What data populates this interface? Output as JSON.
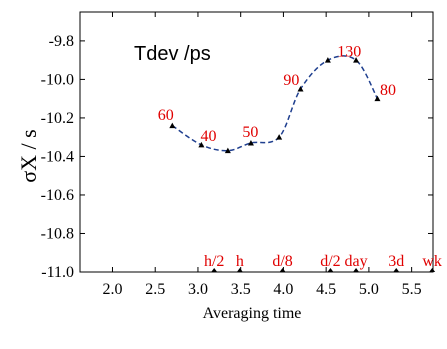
{
  "chart_data": {
    "type": "line",
    "title": "Tdev /ps",
    "xlabel": "Averaging time",
    "ylabel": "σX / s",
    "xlim": [
      1.62,
      5.75
    ],
    "ylim": [
      -11.0,
      -9.65
    ],
    "x_ticks": [
      2.0,
      2.5,
      3.0,
      3.5,
      4.0,
      4.5,
      5.0,
      5.5
    ],
    "x_tick_labels": [
      "2.0",
      "2.5",
      "3.0",
      "3.5",
      "4.0",
      "4.5",
      "5.0",
      "5.5"
    ],
    "y_ticks": [
      -9.8,
      -10.0,
      -10.2,
      -10.4,
      -10.6,
      -10.8,
      -11.0
    ],
    "y_tick_labels": [
      "-9.8",
      "-10.0",
      "-10.2",
      "-10.4",
      "-10.6",
      "-10.8",
      "-11.0"
    ],
    "grid": false,
    "line_color": "#1f3f8f",
    "label_color": "#e00000",
    "series": [
      {
        "points": [
          {
            "x": 2.7,
            "y": -10.24
          },
          {
            "x": 3.04,
            "y": -10.34
          },
          {
            "x": 3.35,
            "y": -10.37
          },
          {
            "x": 3.62,
            "y": -10.33
          },
          {
            "x": 3.95,
            "y": -10.3
          },
          {
            "x": 4.2,
            "y": -10.05
          },
          {
            "x": 4.52,
            "y": -9.9
          },
          {
            "x": 4.85,
            "y": -9.9
          },
          {
            "x": 5.1,
            "y": -10.1
          }
        ]
      }
    ],
    "point_labels": [
      {
        "text": "60",
        "x": 2.53,
        "y": -10.21
      },
      {
        "text": "40",
        "x": 3.03,
        "y": -10.32
      },
      {
        "text": "50",
        "x": 3.52,
        "y": -10.3
      },
      {
        "text": "90",
        "x": 4.0,
        "y": -10.03
      },
      {
        "text": "130",
        "x": 4.63,
        "y": -9.88
      },
      {
        "text": "80",
        "x": 5.13,
        "y": -10.08
      }
    ],
    "time_markers": [
      {
        "text": "h/2",
        "x": 3.19
      },
      {
        "text": "h",
        "x": 3.49
      },
      {
        "text": "d/8",
        "x": 3.99
      },
      {
        "text": "d/2",
        "x": 4.55
      },
      {
        "text": "day",
        "x": 4.85
      },
      {
        "text": "3d",
        "x": 5.32
      },
      {
        "text": "wk",
        "x": 5.74
      }
    ]
  }
}
